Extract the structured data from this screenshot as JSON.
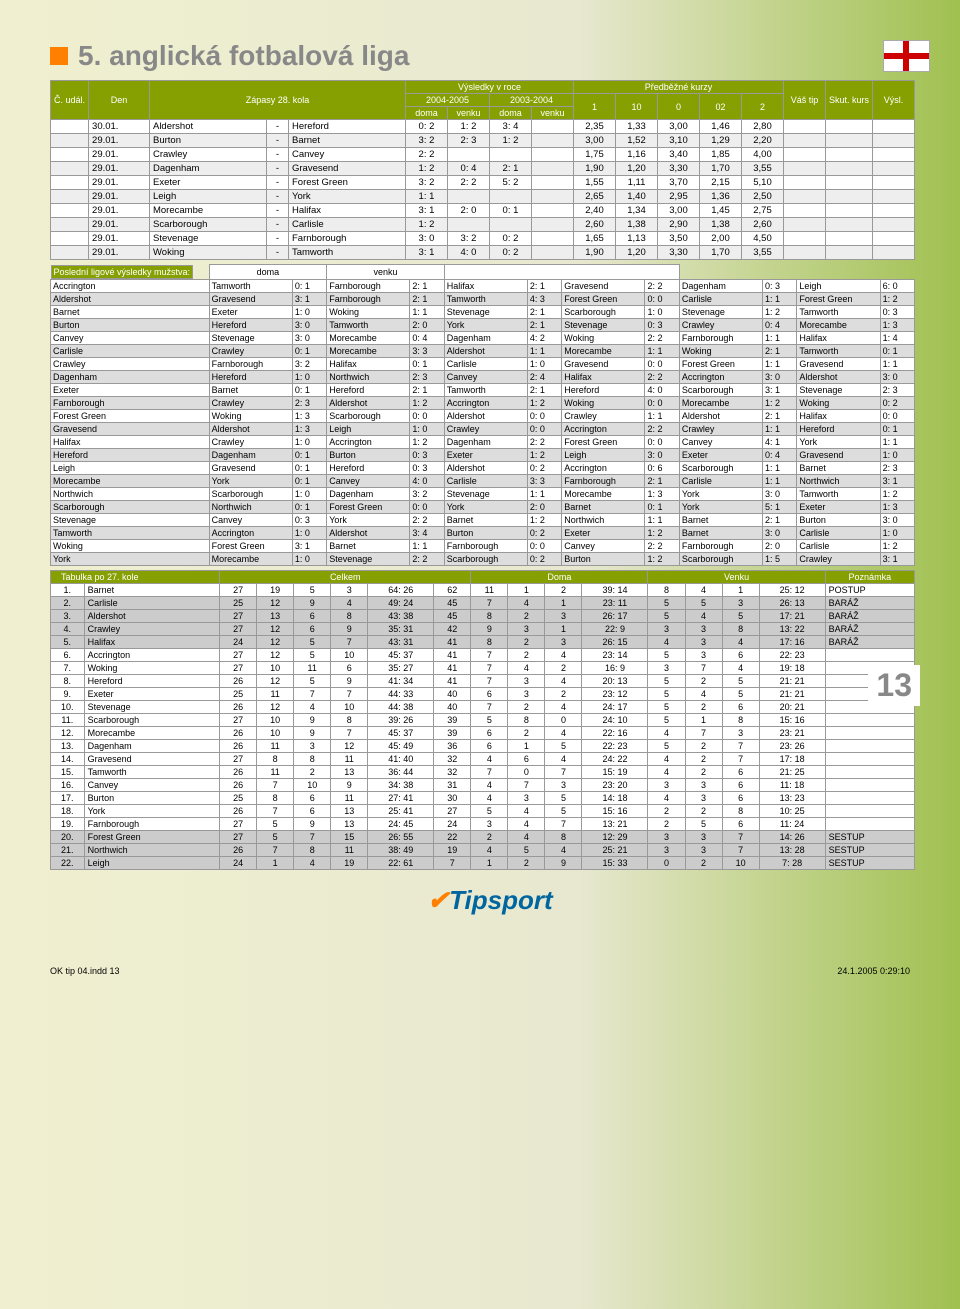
{
  "title": "5. anglická fotbalová liga",
  "fixtures_header": {
    "c_udal": "Č. udál.",
    "den": "Den",
    "zapasy": "Zápasy 28. kola",
    "vysledky": "Výsledky v roce",
    "r1": "2004-2005",
    "r2": "2003-2004",
    "doma": "doma",
    "venku": "venku",
    "predb": "Předběžné kurzy",
    "k1": "1",
    "k10": "10",
    "k0": "0",
    "k02": "02",
    "k2": "2",
    "vas_tip": "Váš tip",
    "skut": "Skut. kurs",
    "vysl": "Výsl."
  },
  "fixtures": [
    {
      "d": "30.01.",
      "h": "Aldershot",
      "a": "Hereford",
      "r": [
        "0: 2",
        "1: 2",
        "3: 4"
      ],
      "o": [
        "2,35",
        "1,33",
        "3,00",
        "1,46",
        "2,80"
      ]
    },
    {
      "d": "29.01.",
      "h": "Burton",
      "a": "Barnet",
      "r": [
        "3: 2",
        "2: 3",
        "1: 2"
      ],
      "o": [
        "3,00",
        "1,52",
        "3,10",
        "1,29",
        "2,20"
      ]
    },
    {
      "d": "29.01.",
      "h": "Crawley",
      "a": "Canvey",
      "r": [
        "2: 2",
        "",
        ""
      ],
      "o": [
        "1,75",
        "1,16",
        "3,40",
        "1,85",
        "4,00"
      ]
    },
    {
      "d": "29.01.",
      "h": "Dagenham",
      "a": "Gravesend",
      "r": [
        "1: 2",
        "0: 4",
        "2: 1"
      ],
      "o": [
        "1,90",
        "1,20",
        "3,30",
        "1,70",
        "3,55"
      ]
    },
    {
      "d": "29.01.",
      "h": "Exeter",
      "a": "Forest Green",
      "r": [
        "3: 2",
        "2: 2",
        "5: 2"
      ],
      "o": [
        "1,55",
        "1,11",
        "3,70",
        "2,15",
        "5,10"
      ]
    },
    {
      "d": "29.01.",
      "h": "Leigh",
      "a": "York",
      "r": [
        "1: 1",
        "",
        ""
      ],
      "o": [
        "2,65",
        "1,40",
        "2,95",
        "1,36",
        "2,50"
      ]
    },
    {
      "d": "29.01.",
      "h": "Morecambe",
      "a": "Halifax",
      "r": [
        "3: 1",
        "2: 0",
        "0: 1"
      ],
      "o": [
        "2,40",
        "1,34",
        "3,00",
        "1,45",
        "2,75"
      ]
    },
    {
      "d": "29.01.",
      "h": "Scarborough",
      "a": "Carlisle",
      "r": [
        "1: 2",
        "",
        ""
      ],
      "o": [
        "2,60",
        "1,38",
        "2,90",
        "1,38",
        "2,60"
      ]
    },
    {
      "d": "29.01.",
      "h": "Stevenage",
      "a": "Farnborough",
      "r": [
        "3: 0",
        "3: 2",
        "0: 2"
      ],
      "o": [
        "1,65",
        "1,13",
        "3,50",
        "2,00",
        "4,50"
      ]
    },
    {
      "d": "29.01.",
      "h": "Woking",
      "a": "Tamworth",
      "r": [
        "3: 1",
        "4: 0",
        "0: 2"
      ],
      "o": [
        "1,90",
        "1,20",
        "3,30",
        "1,70",
        "3,55"
      ]
    }
  ],
  "results_title": "Poslední ligové výsledky mužstva:",
  "doma_label": "doma",
  "venku_label": "venku",
  "results": [
    [
      "Accrington",
      "Tamworth",
      "0: 1",
      "Farnborough",
      "2: 1",
      "Halifax",
      "2: 1",
      "Gravesend",
      "2: 2",
      "Dagenham",
      "0: 3",
      "Leigh",
      "6: 0"
    ],
    [
      "Aldershot",
      "Gravesend",
      "3: 1",
      "Farnborough",
      "2: 1",
      "Tamworth",
      "4: 3",
      "Forest Green",
      "0: 0",
      "Carlisle",
      "1: 1",
      "Forest Green",
      "1: 2"
    ],
    [
      "Barnet",
      "Exeter",
      "1: 0",
      "Woking",
      "1: 1",
      "Stevenage",
      "2: 1",
      "Scarborough",
      "1: 0",
      "Stevenage",
      "1: 2",
      "Tamworth",
      "0: 3"
    ],
    [
      "Burton",
      "Hereford",
      "3: 0",
      "Tamworth",
      "2: 0",
      "York",
      "2: 1",
      "Stevenage",
      "0: 3",
      "Crawley",
      "0: 4",
      "Morecambe",
      "1: 3"
    ],
    [
      "Canvey",
      "Stevenage",
      "3: 0",
      "Morecambe",
      "0: 4",
      "Dagenham",
      "4: 2",
      "Woking",
      "2: 2",
      "Farnborough",
      "1: 1",
      "Halifax",
      "1: 4"
    ],
    [
      "Carlisle",
      "Crawley",
      "0: 1",
      "Morecambe",
      "3: 3",
      "Aldershot",
      "1: 1",
      "Morecambe",
      "1: 1",
      "Woking",
      "2: 1",
      "Tamworth",
      "0: 1"
    ],
    [
      "Crawley",
      "Farnborough",
      "3: 2",
      "Halifax",
      "0: 1",
      "Carlisle",
      "1: 0",
      "Gravesend",
      "0: 0",
      "Forest Green",
      "1: 1",
      "Gravesend",
      "1: 1"
    ],
    [
      "Dagenham",
      "Hereford",
      "1: 0",
      "Northwich",
      "2: 3",
      "Canvey",
      "2: 4",
      "Halifax",
      "2: 2",
      "Accrington",
      "3: 0",
      "Aldershot",
      "3: 0"
    ],
    [
      "Exeter",
      "Barnet",
      "0: 1",
      "Hereford",
      "2: 1",
      "Tamworth",
      "2: 1",
      "Hereford",
      "4: 0",
      "Scarborough",
      "3: 1",
      "Stevenage",
      "2: 3"
    ],
    [
      "Farnborough",
      "Crawley",
      "2: 3",
      "Aldershot",
      "1: 2",
      "Accrington",
      "1: 2",
      "Woking",
      "0: 0",
      "Morecambe",
      "1: 2",
      "Woking",
      "0: 2"
    ],
    [
      "Forest Green",
      "Woking",
      "1: 3",
      "Scarborough",
      "0: 0",
      "Aldershot",
      "0: 0",
      "Crawley",
      "1: 1",
      "Aldershot",
      "2: 1",
      "Halifax",
      "0: 0"
    ],
    [
      "Gravesend",
      "Aldershot",
      "1: 3",
      "Leigh",
      "1: 0",
      "Crawley",
      "0: 0",
      "Accrington",
      "2: 2",
      "Crawley",
      "1: 1",
      "Hereford",
      "0: 1"
    ],
    [
      "Halifax",
      "Crawley",
      "1: 0",
      "Accrington",
      "1: 2",
      "Dagenham",
      "2: 2",
      "Forest Green",
      "0: 0",
      "Canvey",
      "4: 1",
      "York",
      "1: 1"
    ],
    [
      "Hereford",
      "Dagenham",
      "0: 1",
      "Burton",
      "0: 3",
      "Exeter",
      "1: 2",
      "Leigh",
      "3: 0",
      "Exeter",
      "0: 4",
      "Gravesend",
      "1: 0"
    ],
    [
      "Leigh",
      "Gravesend",
      "0: 1",
      "Hereford",
      "0: 3",
      "Aldershot",
      "0: 2",
      "Accrington",
      "0: 6",
      "Scarborough",
      "1: 1",
      "Barnet",
      "2: 3"
    ],
    [
      "Morecambe",
      "York",
      "0: 1",
      "Canvey",
      "4: 0",
      "Carlisle",
      "3: 3",
      "Farnborough",
      "2: 1",
      "Carlisle",
      "1: 1",
      "Northwich",
      "3: 1"
    ],
    [
      "Northwich",
      "Scarborough",
      "1: 0",
      "Dagenham",
      "3: 2",
      "Stevenage",
      "1: 1",
      "Morecambe",
      "1: 3",
      "York",
      "3: 0",
      "Tamworth",
      "1: 2"
    ],
    [
      "Scarborough",
      "Northwich",
      "0: 1",
      "Forest Green",
      "0: 0",
      "York",
      "2: 0",
      "Barnet",
      "0: 1",
      "York",
      "5: 1",
      "Exeter",
      "1: 3"
    ],
    [
      "Stevenage",
      "Canvey",
      "0: 3",
      "York",
      "2: 2",
      "Barnet",
      "1: 2",
      "Northwich",
      "1: 1",
      "Barnet",
      "2: 1",
      "Burton",
      "3: 0"
    ],
    [
      "Tamworth",
      "Accrington",
      "1: 0",
      "Aldershot",
      "3: 4",
      "Burton",
      "0: 2",
      "Exeter",
      "1: 2",
      "Barnet",
      "3: 0",
      "Carlisle",
      "1: 0"
    ],
    [
      "Woking",
      "Forest Green",
      "3: 1",
      "Barnet",
      "1: 1",
      "Farnborough",
      "0: 0",
      "Canvey",
      "2: 2",
      "Farnborough",
      "2: 0",
      "Carlisle",
      "1: 2"
    ],
    [
      "York",
      "Morecambe",
      "1: 0",
      "Stevenage",
      "2: 2",
      "Scarborough",
      "0: 2",
      "Burton",
      "1: 2",
      "Scarborough",
      "1: 5",
      "Crawley",
      "3: 1"
    ]
  ],
  "standings_title": "Tabulka po 27. kole",
  "standings_headers": {
    "celkem": "Celkem",
    "doma": "Doma",
    "venku": "Venku",
    "pozn": "Poznámka"
  },
  "standings": [
    [
      "1.",
      "Barnet",
      "27",
      "19",
      "5",
      "3",
      "64: 26",
      "62",
      "11",
      "1",
      "2",
      "39: 14",
      "8",
      "4",
      "1",
      "25: 12",
      "POSTUP",
      0
    ],
    [
      "2.",
      "Carlisle",
      "25",
      "12",
      "9",
      "4",
      "49: 24",
      "45",
      "7",
      "4",
      "1",
      "23: 11",
      "5",
      "5",
      "3",
      "26: 13",
      "BARÁŽ",
      1
    ],
    [
      "3.",
      "Aldershot",
      "27",
      "13",
      "6",
      "8",
      "43: 38",
      "45",
      "8",
      "2",
      "3",
      "26: 17",
      "5",
      "4",
      "5",
      "17: 21",
      "BARÁŽ",
      1
    ],
    [
      "4.",
      "Crawley",
      "27",
      "12",
      "6",
      "9",
      "35: 31",
      "42",
      "9",
      "3",
      "1",
      "22: 9",
      "3",
      "3",
      "8",
      "13: 22",
      "BARÁŽ",
      1
    ],
    [
      "5.",
      "Halifax",
      "24",
      "12",
      "5",
      "7",
      "43: 31",
      "41",
      "8",
      "2",
      "3",
      "26: 15",
      "4",
      "3",
      "4",
      "17: 16",
      "BARÁŽ",
      1
    ],
    [
      "6.",
      "Accrington",
      "27",
      "12",
      "5",
      "10",
      "45: 37",
      "41",
      "7",
      "2",
      "4",
      "23: 14",
      "5",
      "3",
      "6",
      "22: 23",
      "",
      0
    ],
    [
      "7.",
      "Woking",
      "27",
      "10",
      "11",
      "6",
      "35: 27",
      "41",
      "7",
      "4",
      "2",
      "16: 9",
      "3",
      "7",
      "4",
      "19: 18",
      "",
      0
    ],
    [
      "8.",
      "Hereford",
      "26",
      "12",
      "5",
      "9",
      "41: 34",
      "41",
      "7",
      "3",
      "4",
      "20: 13",
      "5",
      "2",
      "5",
      "21: 21",
      "",
      0
    ],
    [
      "9.",
      "Exeter",
      "25",
      "11",
      "7",
      "7",
      "44: 33",
      "40",
      "6",
      "3",
      "2",
      "23: 12",
      "5",
      "4",
      "5",
      "21: 21",
      "",
      0
    ],
    [
      "10.",
      "Stevenage",
      "26",
      "12",
      "4",
      "10",
      "44: 38",
      "40",
      "7",
      "2",
      "4",
      "24: 17",
      "5",
      "2",
      "6",
      "20: 21",
      "",
      0
    ],
    [
      "11.",
      "Scarborough",
      "27",
      "10",
      "9",
      "8",
      "39: 26",
      "39",
      "5",
      "8",
      "0",
      "24: 10",
      "5",
      "1",
      "8",
      "15: 16",
      "",
      0
    ],
    [
      "12.",
      "Morecambe",
      "26",
      "10",
      "9",
      "7",
      "45: 37",
      "39",
      "6",
      "2",
      "4",
      "22: 16",
      "4",
      "7",
      "3",
      "23: 21",
      "",
      0
    ],
    [
      "13.",
      "Dagenham",
      "26",
      "11",
      "3",
      "12",
      "45: 49",
      "36",
      "6",
      "1",
      "5",
      "22: 23",
      "5",
      "2",
      "7",
      "23: 26",
      "",
      0
    ],
    [
      "14.",
      "Gravesend",
      "27",
      "8",
      "8",
      "11",
      "41: 40",
      "32",
      "4",
      "6",
      "4",
      "24: 22",
      "4",
      "2",
      "7",
      "17: 18",
      "",
      0
    ],
    [
      "15.",
      "Tamworth",
      "26",
      "11",
      "2",
      "13",
      "36: 44",
      "32",
      "7",
      "0",
      "7",
      "15: 19",
      "4",
      "2",
      "6",
      "21: 25",
      "",
      0
    ],
    [
      "16.",
      "Canvey",
      "26",
      "7",
      "10",
      "9",
      "34: 38",
      "31",
      "4",
      "7",
      "3",
      "23: 20",
      "3",
      "3",
      "6",
      "11: 18",
      "",
      0
    ],
    [
      "17.",
      "Burton",
      "25",
      "8",
      "6",
      "11",
      "27: 41",
      "30",
      "4",
      "3",
      "5",
      "14: 18",
      "4",
      "3",
      "6",
      "13: 23",
      "",
      0
    ],
    [
      "18.",
      "York",
      "26",
      "7",
      "6",
      "13",
      "25: 41",
      "27",
      "5",
      "4",
      "5",
      "15: 16",
      "2",
      "2",
      "8",
      "10: 25",
      "",
      0
    ],
    [
      "19.",
      "Farnborough",
      "27",
      "5",
      "9",
      "13",
      "24: 45",
      "24",
      "3",
      "4",
      "7",
      "13: 21",
      "2",
      "5",
      "6",
      "11: 24",
      "",
      0
    ],
    [
      "20.",
      "Forest Green",
      "27",
      "5",
      "7",
      "15",
      "26: 55",
      "22",
      "2",
      "4",
      "8",
      "12: 29",
      "3",
      "3",
      "7",
      "14: 26",
      "SESTUP",
      1
    ],
    [
      "21.",
      "Northwich",
      "26",
      "7",
      "8",
      "11",
      "38: 49",
      "19",
      "4",
      "5",
      "4",
      "25: 21",
      "3",
      "3",
      "7",
      "13: 28",
      "SESTUP",
      1
    ],
    [
      "22.",
      "Leigh",
      "24",
      "1",
      "4",
      "19",
      "22: 61",
      "7",
      "1",
      "2",
      "9",
      "15: 33",
      "0",
      "2",
      "10",
      "7: 28",
      "SESTUP",
      1
    ]
  ],
  "tipsport": "Tipsport",
  "page_num": "13",
  "footer_left": "OK tip 04.indd   13",
  "footer_right": "24.1.2005   0:29:10"
}
